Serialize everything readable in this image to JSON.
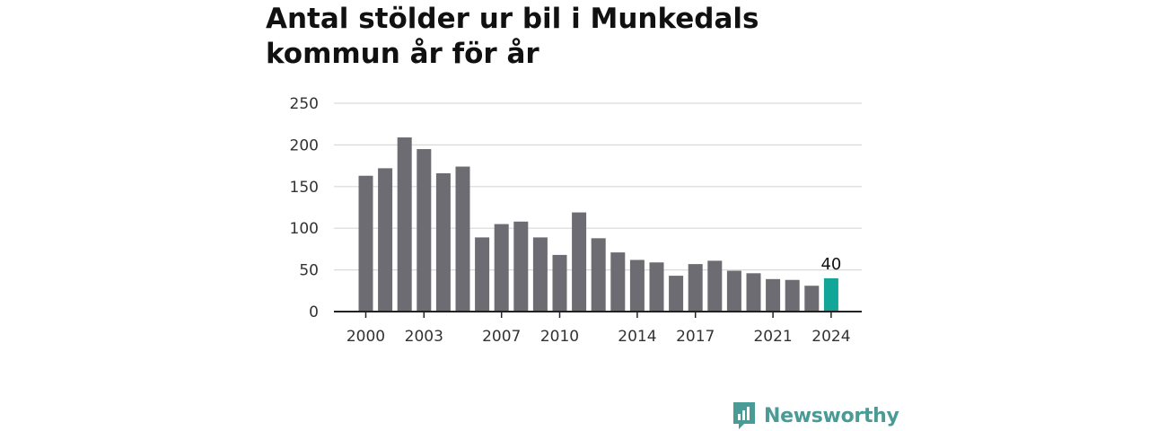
{
  "title_lines": [
    "Antal stölder ur bil i Munkedals",
    "kommun år för år"
  ],
  "brand": {
    "name": "Newsworthy",
    "color": "#4a9b96"
  },
  "colors": {
    "bar": "#6d6c72",
    "highlight": "#12a699",
    "grid": "#d9d9d9",
    "axis": "#222222"
  },
  "chart_data": {
    "type": "bar",
    "title": "Antal stölder ur bil i Munkedals kommun år för år",
    "xlabel": "",
    "ylabel": "",
    "categories": [
      2000,
      2001,
      2002,
      2003,
      2004,
      2005,
      2006,
      2007,
      2008,
      2009,
      2010,
      2011,
      2012,
      2013,
      2014,
      2015,
      2016,
      2017,
      2018,
      2019,
      2020,
      2021,
      2022,
      2023,
      2024
    ],
    "values": [
      163,
      172,
      209,
      195,
      166,
      174,
      89,
      105,
      108,
      89,
      68,
      119,
      88,
      71,
      62,
      59,
      43,
      57,
      61,
      49,
      46,
      39,
      38,
      31,
      40
    ],
    "highlight_index": 24,
    "highlight_label": "40",
    "ylim": [
      0,
      250
    ],
    "yticks": [
      0,
      50,
      100,
      150,
      200,
      250
    ],
    "xtick_labels": [
      "2000",
      "2003",
      "2007",
      "2010",
      "2014",
      "2017",
      "2021",
      "2024"
    ],
    "grid": true
  }
}
